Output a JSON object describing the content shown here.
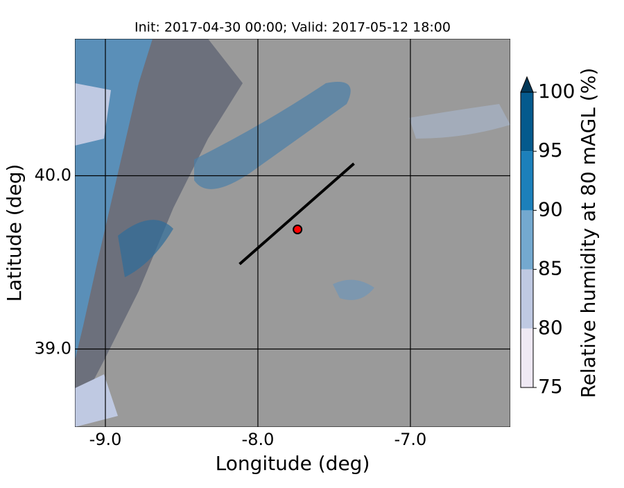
{
  "chart_data": {
    "type": "map",
    "title": "Init: 2017-04-30 00:00; Valid: 2017-05-12 18:00",
    "x_label": "Longitude (deg)",
    "y_label": "Latitude (deg)",
    "xlim": [
      -9.2,
      -6.345
    ],
    "ylim": [
      38.55,
      40.79
    ],
    "xticks": [
      {
        "value": -9,
        "label": "-9.0"
      },
      {
        "value": -8,
        "label": "-8.0"
      },
      {
        "value": -7,
        "label": "-7.0"
      }
    ],
    "yticks": [
      {
        "value": 39,
        "label": "39.0"
      },
      {
        "value": 40,
        "label": "40.0"
      }
    ],
    "grid": true,
    "section": {
      "x": [
        -8.12,
        -7.37
      ],
      "y": [
        39.49,
        40.07
      ],
      "color": "#000000"
    },
    "point": {
      "x": -7.74,
      "y": 39.69,
      "color": "#ff0000"
    },
    "colorbar": {
      "label": "Relative humidity at 80 mAGL (%)",
      "levels": [
        75,
        80,
        85,
        90,
        95,
        100
      ],
      "colors": [
        "#efe9f4",
        "#bfc9e2",
        "#74a9cf",
        "#1c80bb",
        "#045a8d"
      ],
      "extend_color": "#023858"
    }
  }
}
